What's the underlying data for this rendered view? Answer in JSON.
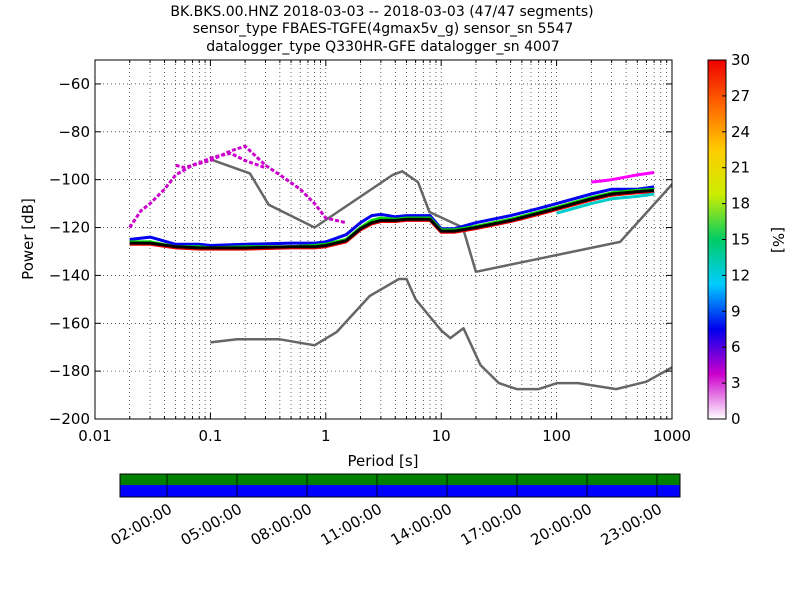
{
  "chart_data": {
    "type": "line",
    "title_lines": [
      "BK.BKS.00.HNZ   2018-03-03 -- 2018-03-03  (47/47 segments)",
      "sensor_type FBAES-TGFE(4gmax5v_g) sensor_sn 5547",
      "datalogger_type Q330HR-GFE datalogger_sn 4007"
    ],
    "xlabel": "Period [s]",
    "ylabel": "Power [dB]",
    "x_scale": "log",
    "xlim": [
      0.01,
      1000
    ],
    "ylim": [
      -200,
      -50
    ],
    "x_ticks": [
      {
        "value": 0.01,
        "label": "0.01"
      },
      {
        "value": 0.1,
        "label": "0.1"
      },
      {
        "value": 1,
        "label": "1"
      },
      {
        "value": 10,
        "label": "10"
      },
      {
        "value": 100,
        "label": "100"
      },
      {
        "value": 1000,
        "label": "1000"
      }
    ],
    "y_ticks": [
      {
        "value": -60,
        "label": "−60"
      },
      {
        "value": -80,
        "label": "−80"
      },
      {
        "value": -100,
        "label": "−100"
      },
      {
        "value": -120,
        "label": "−120"
      },
      {
        "value": -140,
        "label": "−140"
      },
      {
        "value": -160,
        "label": "−160"
      },
      {
        "value": -180,
        "label": "−180"
      },
      {
        "value": -200,
        "label": "−200"
      }
    ],
    "grid": true,
    "series": [
      {
        "kind": "reference",
        "color": "#666666",
        "x": [
          0.1,
          0.17,
          0.4,
          0.8,
          1.24,
          2.4,
          4.3,
          5.0,
          6.0,
          10.0,
          12.0,
          15.6,
          21.9,
          31.6,
          45.0,
          70.0,
          101.0,
          154.0,
          328.0,
          600.0,
          10000.0
        ],
        "y": [
          -168.0,
          -166.7,
          -166.7,
          -169.2,
          -163.7,
          -148.6,
          -141.5,
          -141.5,
          -150.0,
          -163.0,
          -166.2,
          -162.1,
          -177.5,
          -185.0,
          -187.5,
          -187.5,
          -185.0,
          -185.0,
          -187.5,
          -184.4,
          -151.5
        ]
      },
      {
        "kind": "reference",
        "color": "#666666",
        "x": [
          0.1,
          0.22,
          0.32,
          0.8,
          3.8,
          4.6,
          6.3,
          7.9,
          15.4,
          20.0,
          354.8,
          10000.0
        ],
        "y": [
          -91.5,
          -97.4,
          -110.5,
          -120.0,
          -98.0,
          -96.5,
          -101.0,
          -113.5,
          -120.0,
          -138.5,
          -126.0,
          -48.5
        ]
      },
      {
        "kind": "ppsd-envelope",
        "color": "#cc00cc",
        "x": [
          0.02,
          0.025,
          0.03,
          0.04,
          0.05,
          0.07,
          0.1,
          0.15,
          0.2,
          0.3,
          0.4,
          0.6,
          0.8,
          1.0,
          1.5
        ],
        "y": [
          -120,
          -113,
          -110,
          -104,
          -98,
          -94,
          -92,
          -88,
          -86,
          -94,
          -98,
          -104,
          -110,
          -116,
          -118
        ]
      },
      {
        "kind": "ppsd-envelope",
        "color": "#cc00cc",
        "x": [
          0.05,
          0.06,
          0.08,
          0.1,
          0.12,
          0.15,
          0.2,
          0.3
        ],
        "y": [
          -94,
          -95,
          -93,
          -91,
          -90,
          -89,
          -92,
          -95
        ]
      },
      {
        "kind": "ppsd-band",
        "color": "#0000ee",
        "x": [
          0.02,
          0.03,
          0.05,
          0.08,
          0.1,
          0.2,
          0.5,
          0.8,
          1.0,
          1.5,
          2.0,
          2.5,
          3.0,
          4.0,
          5.0,
          6.0,
          8.0,
          10.0,
          13.0,
          20.0,
          40.0,
          70.0,
          100.0,
          200.0,
          300.0,
          500.0,
          700.0
        ],
        "y": [
          -125,
          -124,
          -127,
          -127,
          -127.5,
          -127,
          -126.5,
          -126.5,
          -126,
          -123,
          -118,
          -115,
          -114.5,
          -115.5,
          -115,
          -115,
          -115,
          -120.5,
          -120.5,
          -118,
          -115,
          -112,
          -110,
          -106,
          -104,
          -104,
          -103
        ]
      },
      {
        "kind": "ppsd-band",
        "color": "#00dd00",
        "x": [
          0.02,
          0.03,
          0.05,
          0.08,
          0.1,
          0.2,
          0.5,
          0.8,
          1.0,
          1.5,
          2.0,
          2.5,
          3.0,
          4.0,
          5.0,
          6.0,
          8.0,
          10.0,
          13.0,
          20.0,
          40.0,
          70.0,
          100.0,
          200.0,
          300.0,
          500.0,
          700.0
        ],
        "y": [
          -126,
          -126,
          -128,
          -128,
          -128.5,
          -128,
          -128,
          -127.5,
          -127,
          -125,
          -120,
          -117,
          -116,
          -116.5,
          -116,
          -116,
          -116,
          -121,
          -121,
          -119.5,
          -116.5,
          -113.5,
          -111.5,
          -107.5,
          -105.5,
          -104.5,
          -104
        ]
      },
      {
        "kind": "ppsd-band",
        "color": "#ee0000",
        "x": [
          0.02,
          0.03,
          0.05,
          0.08,
          0.1,
          0.2,
          0.5,
          0.8,
          1.0,
          1.5,
          2.0,
          2.5,
          3.0,
          4.0,
          5.0,
          6.0,
          8.0,
          10.0,
          13.0,
          20.0,
          40.0,
          70.0,
          100.0,
          200.0,
          300.0,
          500.0,
          700.0
        ],
        "y": [
          -127,
          -127,
          -128.5,
          -129,
          -129,
          -129,
          -128.5,
          -128.5,
          -128,
          -126,
          -121,
          -118.5,
          -117.5,
          -117.5,
          -117,
          -117,
          -117,
          -122,
          -122,
          -120.5,
          -117.5,
          -114.5,
          -112.5,
          -108.5,
          -106.5,
          -105.5,
          -105
        ]
      },
      {
        "kind": "ppsd-band",
        "color": "#000000",
        "x": [
          0.02,
          0.03,
          0.05,
          0.08,
          0.1,
          0.2,
          0.5,
          0.8,
          1.0,
          1.5,
          2.0,
          2.5,
          3.0,
          4.0,
          5.0,
          6.0,
          8.0,
          10.0,
          13.0,
          20.0,
          40.0,
          70.0,
          100.0,
          200.0,
          300.0,
          500.0,
          700.0
        ],
        "y": [
          -126.5,
          -126.5,
          -128,
          -128.5,
          -128.5,
          -128.5,
          -128,
          -128,
          -127.5,
          -125.5,
          -120.5,
          -118,
          -117,
          -117,
          -116.5,
          -116.5,
          -116.5,
          -121.5,
          -121.5,
          -120,
          -117,
          -114,
          -112,
          -108,
          -106,
          -105,
          -104.5
        ]
      },
      {
        "kind": "ppsd-band",
        "color": "#00cccc",
        "x": [
          100.0,
          200.0,
          300.0,
          500.0,
          700.0
        ],
        "y": [
          -114,
          -110,
          -108,
          -107,
          -106
        ]
      },
      {
        "kind": "ppsd-band",
        "color": "#ff00ff",
        "x": [
          200.0,
          300.0,
          500.0,
          700.0
        ],
        "y": [
          -101,
          -100,
          -98,
          -97
        ]
      }
    ],
    "colorbar": {
      "label": "[%]",
      "min": 0,
      "max": 30,
      "ticks": [
        {
          "value": 0,
          "label": "0"
        },
        {
          "value": 3,
          "label": "3"
        },
        {
          "value": 6,
          "label": "6"
        },
        {
          "value": 9,
          "label": "9"
        },
        {
          "value": 12,
          "label": "12"
        },
        {
          "value": 15,
          "label": "15"
        },
        {
          "value": 18,
          "label": "18"
        },
        {
          "value": 21,
          "label": "21"
        },
        {
          "value": 24,
          "label": "24"
        },
        {
          "value": 27,
          "label": "27"
        },
        {
          "value": 30,
          "label": "30"
        }
      ],
      "stops": [
        "#ffffff",
        "#cc00cc",
        "#0000ee",
        "#00ccff",
        "#00cc66",
        "#ccee00",
        "#ffcc00",
        "#ff6600",
        "#ee0000"
      ]
    },
    "coverage": {
      "top_bar_color": "#008000",
      "bottom_bar_color": "#0000ff",
      "time_ticks": [
        "02:00:00",
        "05:00:00",
        "08:00:00",
        "11:00:00",
        "14:00:00",
        "17:00:00",
        "20:00:00",
        "23:00:00"
      ]
    }
  }
}
